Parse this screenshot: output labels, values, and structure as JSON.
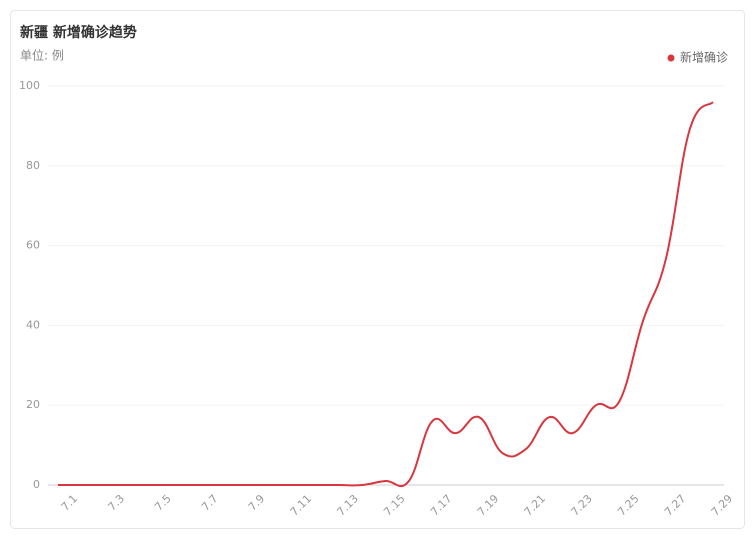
{
  "chart_data": {
    "type": "line",
    "title": "新疆 新增确诊趋势",
    "subtitle": "单位: 例",
    "categories": [
      "7.1",
      null,
      "7.3",
      null,
      "7.5",
      null,
      "7.7",
      null,
      "7.9",
      null,
      "7.11",
      null,
      "7.13",
      null,
      "7.15",
      null,
      "7.17",
      null,
      "7.19",
      null,
      "7.21",
      null,
      "7.23",
      null,
      "7.25",
      null,
      "7.27",
      null,
      "7.29"
    ],
    "series": [
      {
        "name": "新增确诊",
        "color": "#d9363e",
        "values": [
          0,
          0,
          0,
          0,
          0,
          0,
          0,
          0,
          0,
          0,
          0,
          0,
          0,
          0,
          1,
          1,
          16,
          13,
          17,
          8,
          9,
          17,
          13,
          20,
          21,
          41,
          57,
          89,
          96
        ]
      }
    ],
    "ylim": [
      0,
      100
    ],
    "yticks": [
      0,
      20,
      40,
      60,
      80,
      100
    ],
    "grid": true,
    "legend": "top-right"
  }
}
